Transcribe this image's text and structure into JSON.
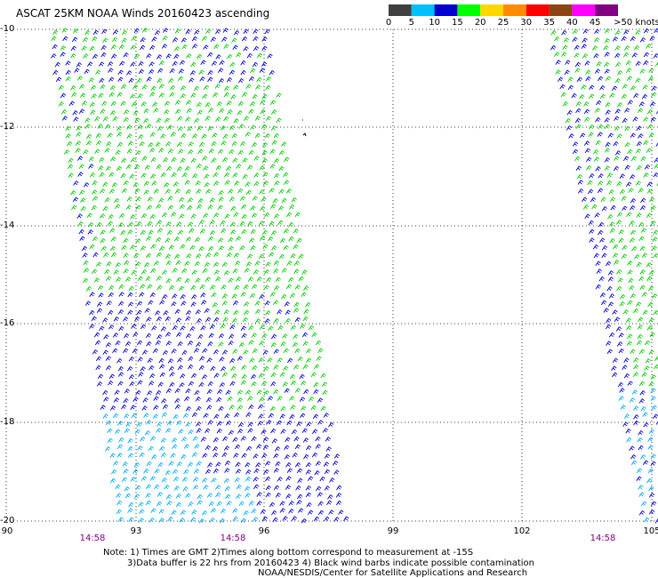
{
  "title": "ASCAT 25KM NOAA Winds 20160423 ascending",
  "legend": {
    "labels": [
      "0",
      "5",
      "10",
      "15",
      "20",
      "25",
      "30",
      "35",
      "40",
      "45",
      ">50 knots"
    ],
    "colors": [
      "#404040",
      "#00bfff",
      "#0000cd",
      "#00ff00",
      "#ffd700",
      "#ff8c00",
      "#ff0000",
      "#8b4513",
      "#ff00ff",
      "#800080"
    ]
  },
  "axes": {
    "y_ticks": [
      "-10",
      "-12",
      "-14",
      "-16",
      "-18",
      "-20"
    ],
    "x_ticks": [
      "90",
      "93",
      "96",
      "99",
      "102",
      "105"
    ],
    "times": [
      "14:58",
      "14:58",
      "14:58"
    ]
  },
  "notes": {
    "line1": "Note: 1) Times are GMT 2)Times along bottom correspond to measurement at -15S",
    "line2": "3)Data buffer is 22 hrs from 20160423 4) Black wind barbs indicate possible contamination",
    "line3": "NOAA/NESDIS/Center for Satellite Applications and Research"
  }
}
